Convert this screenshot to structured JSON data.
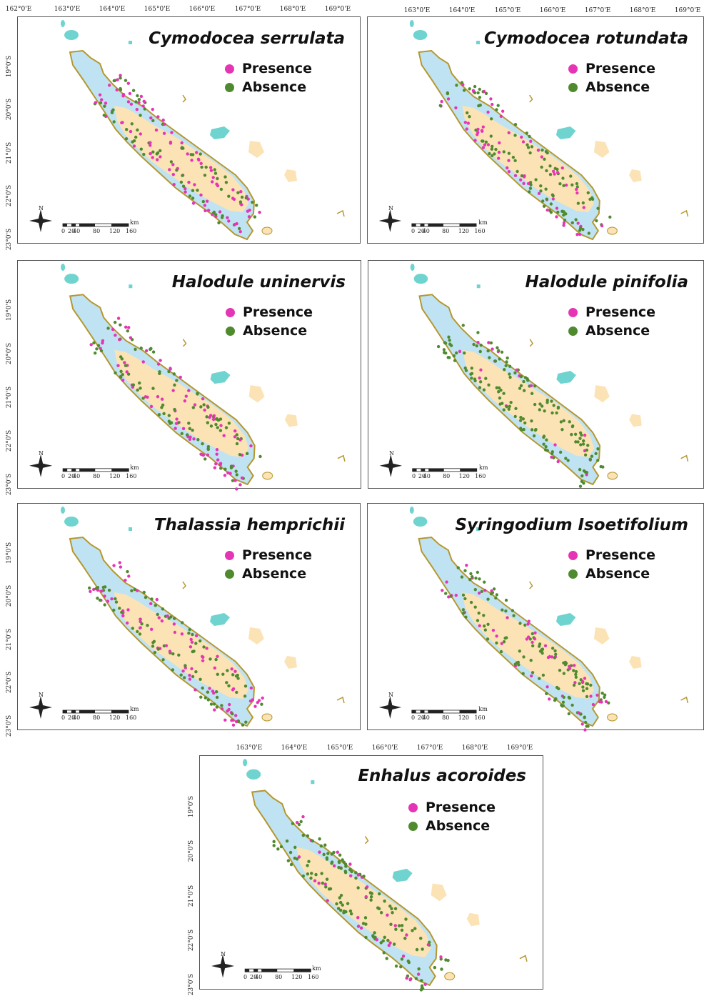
{
  "colors": {
    "presence": "#e535b4",
    "absence": "#4f8a2f",
    "lagoon": "#bfe3f2",
    "land": "#fbe3b6",
    "island_teal": "#6fd3cf",
    "reef_outline": "#b5972e"
  },
  "top_axis": {
    "left_labels": [
      "162°0'E",
      "163°0'E",
      "164°0'E",
      "165°0'E",
      "166°0'E",
      "167°0'E",
      "168°0'E",
      "169°0'E"
    ],
    "right_labels": [
      "163°0'E",
      "164°0'E",
      "165°0'E",
      "166°0'E",
      "167°0'E",
      "168°0'E",
      "169°0'E"
    ],
    "bottom_labels": [
      "163°0'E",
      "164°0'E",
      "165°0'E",
      "166°0'E",
      "167°0'E",
      "168°0'E",
      "169°0'E"
    ]
  },
  "lat_labels": [
    "19°0'S",
    "20°0'S",
    "21°0'S",
    "22°0'S",
    "23°0'S"
  ],
  "legend": {
    "presence": "Presence",
    "absence": "Absence"
  },
  "scale_bar": {
    "labels": [
      "0",
      "20",
      "40",
      "80",
      "120",
      "160"
    ],
    "unit": "km"
  },
  "north_label": "N",
  "panels": [
    {
      "title": "Cymodocea serrulata",
      "presence_level": 0.95
    },
    {
      "title": "Cymodocea rotundata",
      "presence_level": 0.7
    },
    {
      "title": "Halodule uninervis",
      "presence_level": 0.85
    },
    {
      "title": "Halodule pinifolia",
      "presence_level": 0.25
    },
    {
      "title": "Thalassia hemprichii",
      "presence_level": 0.75
    },
    {
      "title": "Syringodium Isoetifolium",
      "presence_level": 0.45
    },
    {
      "title": "Enhalus acoroides",
      "presence_level": 0.3
    }
  ]
}
